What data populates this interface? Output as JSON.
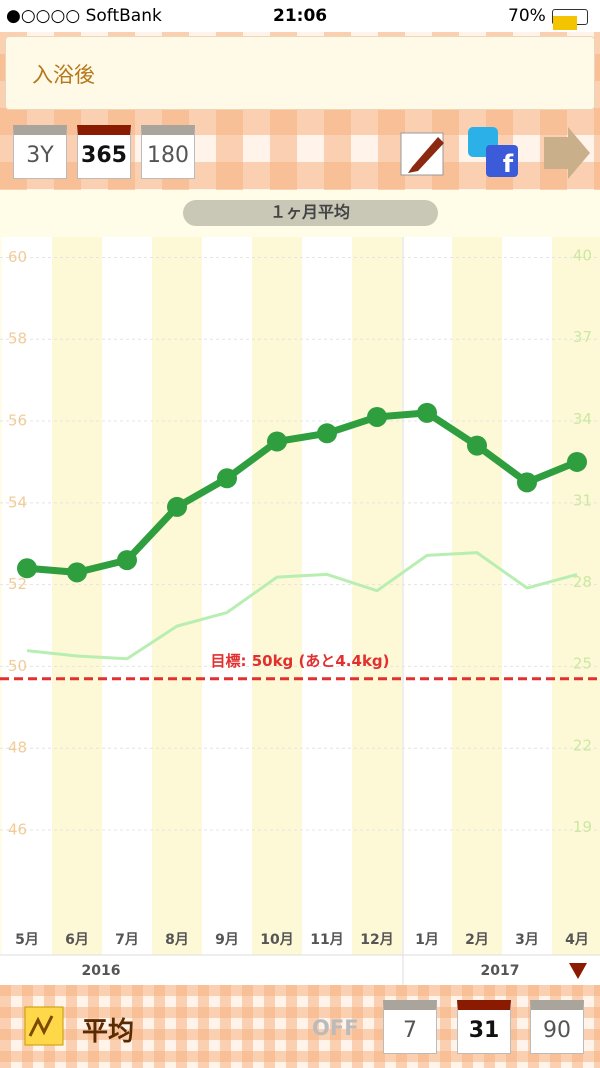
{
  "status_bar": {
    "carrier": "●○○○○ SoftBank",
    "time": "21:06",
    "battery": "70%"
  },
  "header": {
    "note": "入浴後"
  },
  "toolbar": {
    "period_buttons": [
      "3Y",
      "365",
      "180"
    ]
  },
  "chart_data": {
    "type": "line",
    "subtitle": "１ヶ月平均",
    "categories": [
      "5月",
      "6月",
      "7月",
      "8月",
      "9月",
      "10月",
      "11月",
      "12月",
      "1月",
      "2月",
      "3月",
      "4月"
    ],
    "year_labels": [
      "2016",
      "2017"
    ],
    "series": [
      {
        "color": "#2f9e3f",
        "axis": "y",
        "values": [
          52.4,
          52.3,
          52.6,
          53.9,
          54.6,
          55.5,
          55.7,
          56.1,
          56.2,
          55.4,
          54.5,
          55.0
        ]
      },
      {
        "color": "#b8eeb2",
        "axis": "y2",
        "values": [
          25.5,
          25.3,
          25.2,
          26.4,
          26.9,
          28.2,
          28.3,
          27.7,
          29.0,
          29.1,
          27.8,
          28.3
        ]
      }
    ],
    "ylim": [
      43.8,
      60.5
    ],
    "yticks": [
      60,
      58,
      56,
      54,
      52,
      50,
      48,
      46
    ],
    "y2lim": [
      15.6,
      40.7
    ],
    "y2ticks": [
      40,
      37,
      34,
      31,
      28,
      25,
      22,
      19
    ],
    "grid": true,
    "target": {
      "value": 49.7,
      "label": "目標: 50kg (あと4.4kg)",
      "color": "#e2302f"
    }
  },
  "footer": {
    "mode": "平均",
    "toggle": "OFF",
    "range_buttons": [
      "7",
      "31",
      "90"
    ]
  }
}
